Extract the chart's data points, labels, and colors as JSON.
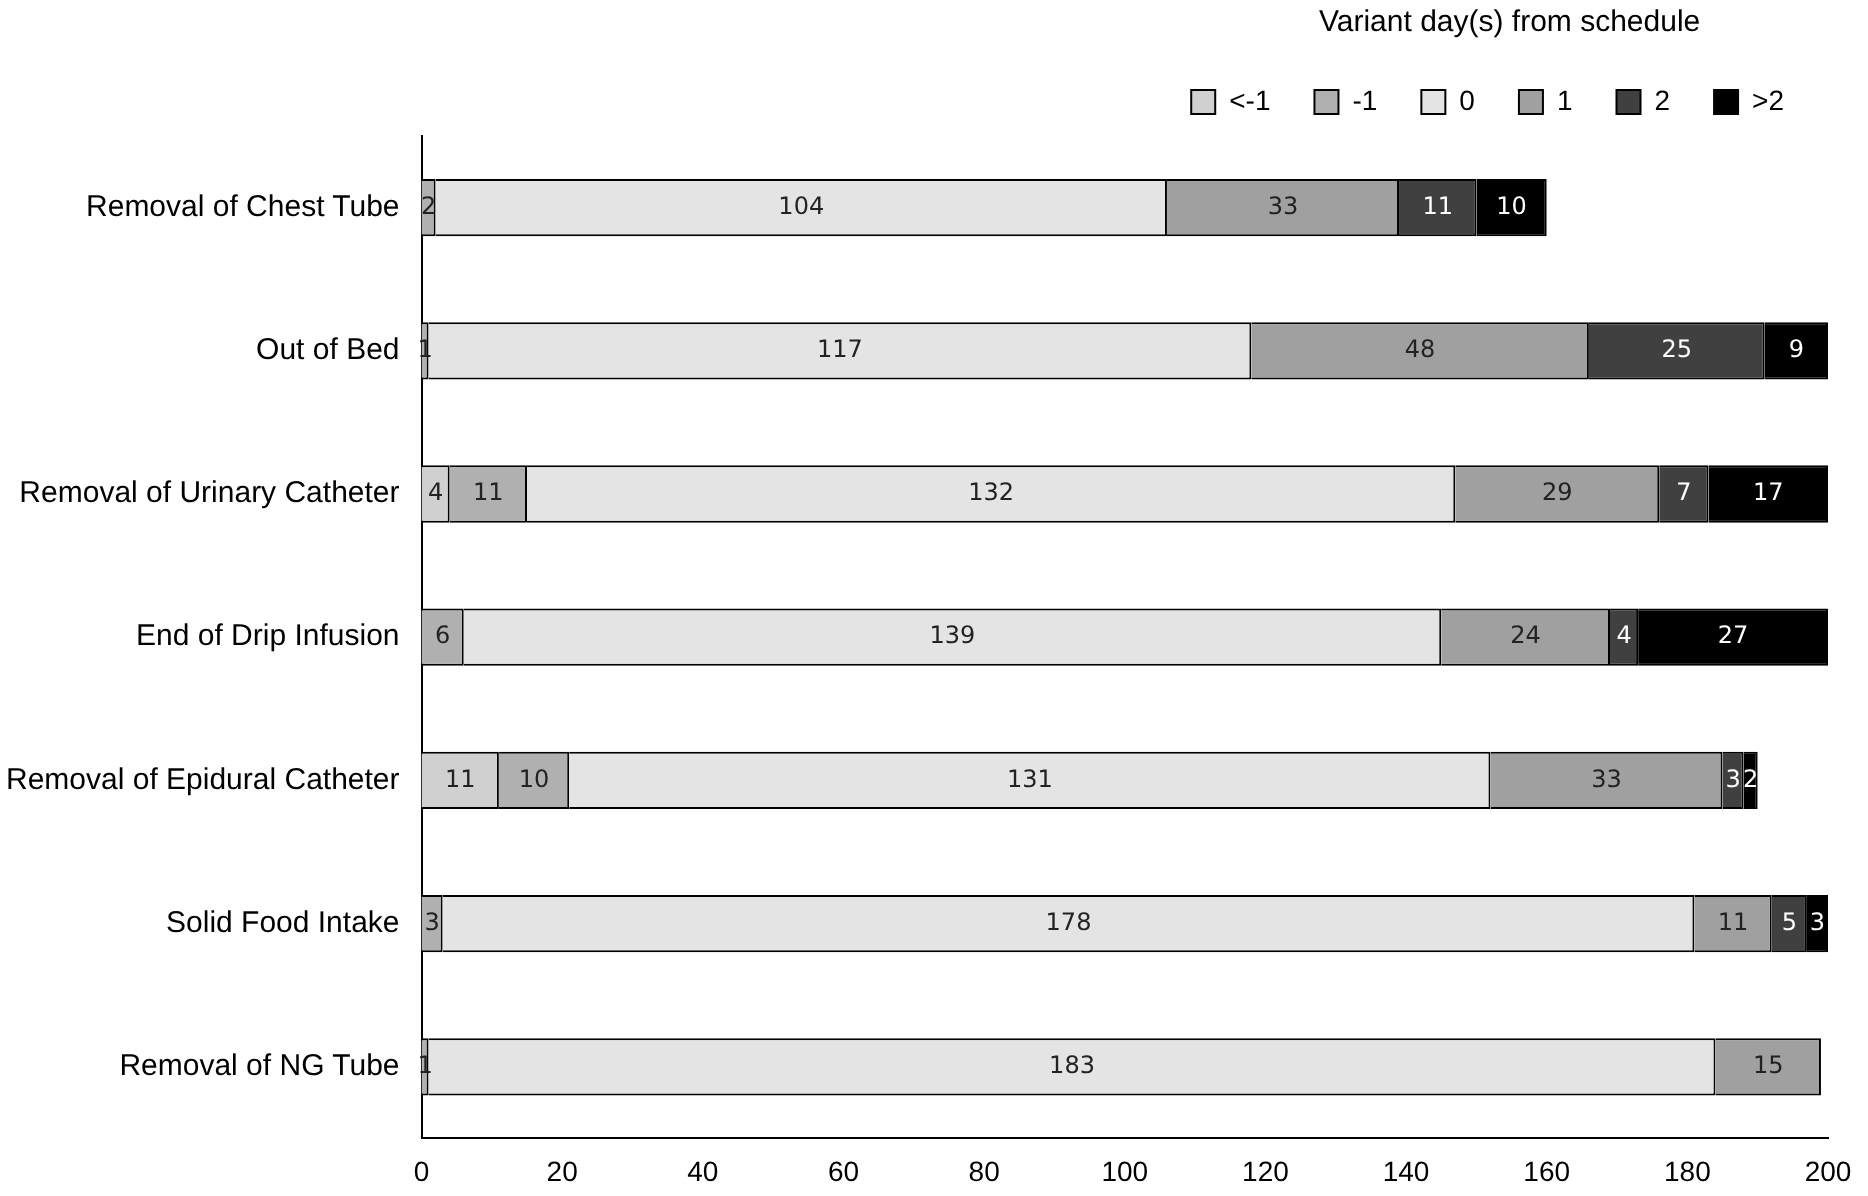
{
  "chart_data": {
    "type": "bar",
    "orientation": "horizontal",
    "stacked": true,
    "legend_title": "Variant day(s) from schedule",
    "legend": "top right",
    "grid": false,
    "data_labels": true,
    "categories": [
      "Removal of Chest Tube",
      "Out of Bed",
      "Removal of Urinary Catheter",
      "End of Drip Infusion",
      "Removal of Epidural Catheter",
      "Solid Food Intake",
      "Removal of NG Tube"
    ],
    "series": [
      {
        "name": "<-1",
        "color": "#d0d0d0",
        "values": [
          null,
          null,
          4,
          null,
          11,
          null,
          null
        ]
      },
      {
        "name": "-1",
        "color": "#b0b0b0",
        "values": [
          2,
          1,
          11,
          6,
          10,
          3,
          1
        ]
      },
      {
        "name": "0",
        "color": "#e4e4e4",
        "values": [
          104,
          117,
          132,
          139,
          131,
          178,
          183
        ]
      },
      {
        "name": "1",
        "color": "#a0a0a0",
        "values": [
          33,
          48,
          29,
          24,
          33,
          11,
          15
        ]
      },
      {
        "name": "2",
        "color": "#404040",
        "values": [
          11,
          25,
          7,
          4,
          3,
          5,
          null
        ]
      },
      {
        "name": ">2",
        "color": "#000000",
        "values": [
          10,
          9,
          17,
          27,
          2,
          3,
          null
        ]
      }
    ],
    "xlim": [
      0,
      200
    ],
    "xticks": [
      0,
      20,
      40,
      60,
      80,
      100,
      120,
      140,
      160,
      180,
      200
    ]
  }
}
